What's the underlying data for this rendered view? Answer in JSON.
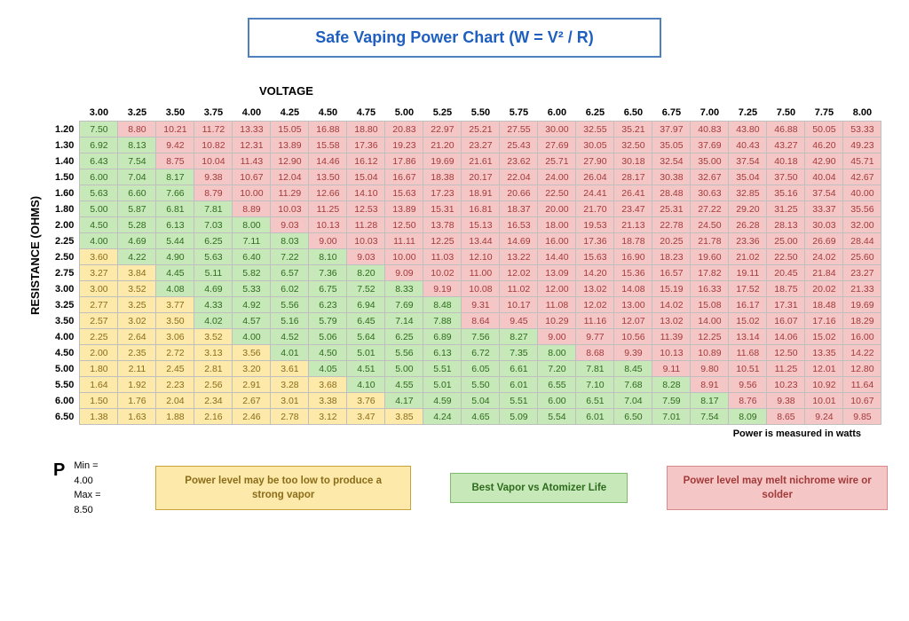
{
  "title": "Safe Vaping Power Chart (W = V² / R)",
  "title_color": "#1f5fbf",
  "title_border_color": "#4f81bd",
  "axis_voltage_label": "VOLTAGE",
  "axis_resistance_label": "RESISTANCE (OHMS)",
  "footnote": "Power is measured in watts",
  "colors": {
    "low": {
      "bg": "#fde9a9",
      "border": "#c7a43b",
      "text": "#8a6d1b"
    },
    "best": {
      "bg": "#c7e8b8",
      "border": "#7fb96a",
      "text": "#2e6b1e"
    },
    "high": {
      "bg": "#f5c6c6",
      "border": "#d98b8b",
      "text": "#a33a3a"
    },
    "cell_border": "#bfbfbf"
  },
  "thresholds": {
    "min": 4.0,
    "max": 8.5
  },
  "voltages": [
    "3.00",
    "3.25",
    "3.50",
    "3.75",
    "4.00",
    "4.25",
    "4.50",
    "4.75",
    "5.00",
    "5.25",
    "5.50",
    "5.75",
    "6.00",
    "6.25",
    "6.50",
    "6.75",
    "7.00",
    "7.25",
    "7.50",
    "7.75",
    "8.00"
  ],
  "resistances": [
    "1.20",
    "1.30",
    "1.40",
    "1.50",
    "1.60",
    "1.80",
    "2.00",
    "2.25",
    "2.50",
    "2.75",
    "3.00",
    "3.25",
    "3.50",
    "4.00",
    "4.50",
    "5.00",
    "5.50",
    "6.00",
    "6.50"
  ],
  "legend": {
    "P_label": "P",
    "min_label": "Min =",
    "max_label": "Max =",
    "min_value": "4.00",
    "max_value": "8.50",
    "low_text": "Power level may be too low to produce a strong vapor",
    "best_text": "Best Vapor vs Atomizer Life",
    "high_text": "Power level may melt nichrome wire or solder"
  }
}
